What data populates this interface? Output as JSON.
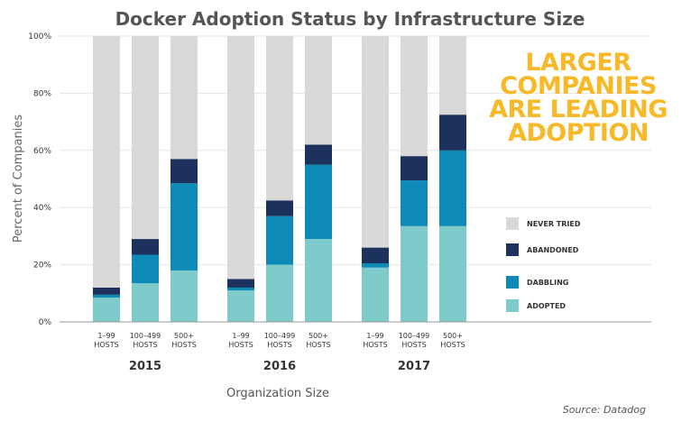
{
  "chart_data": {
    "type": "bar",
    "stacked": true,
    "title": "Docker Adoption Status by Infrastructure Size",
    "ylabel": "Percent of Companies",
    "xlabel": "Organization Size",
    "ylim": [
      0,
      100
    ],
    "y_ticks": [
      0,
      20,
      40,
      60,
      80,
      100
    ],
    "y_tick_labels": [
      "0%",
      "20%",
      "40%",
      "60%",
      "80%",
      "100%"
    ],
    "groups": [
      "2015",
      "2016",
      "2017"
    ],
    "categories": [
      [
        "1–99",
        "HOSTS"
      ],
      [
        "100–499",
        "HOSTS"
      ],
      [
        "500+",
        "HOSTS"
      ]
    ],
    "series": [
      {
        "name": "ADOPTED",
        "color": "#7ecbcb",
        "values": [
          [
            8.5,
            13.5,
            18
          ],
          [
            11,
            20,
            29
          ],
          [
            19,
            33.5,
            33.5
          ]
        ]
      },
      {
        "name": "DABBLING",
        "color": "#0e8ab6",
        "values": [
          [
            1,
            10,
            30.5
          ],
          [
            1,
            17,
            26
          ],
          [
            1.5,
            16,
            26.5
          ]
        ]
      },
      {
        "name": "ABANDONED",
        "color": "#1c315c",
        "values": [
          [
            2.5,
            5.5,
            8.5
          ],
          [
            3,
            5.5,
            7
          ],
          [
            5.5,
            8.5,
            12.5
          ]
        ]
      },
      {
        "name": "NEVER TRIED",
        "color": "#d9d9d9",
        "values": [
          [
            88,
            71,
            43
          ],
          [
            85,
            57.5,
            38
          ],
          [
            74,
            42,
            27.5
          ]
        ]
      }
    ],
    "legend_order": [
      "NEVER TRIED",
      "ABANDONED",
      "DABBLING",
      "ADOPTED"
    ],
    "legend_position": "right",
    "annotation": [
      "LARGER",
      "COMPANIES",
      "ARE LEADING",
      "ADOPTION"
    ],
    "source": "Source: Datadog"
  }
}
